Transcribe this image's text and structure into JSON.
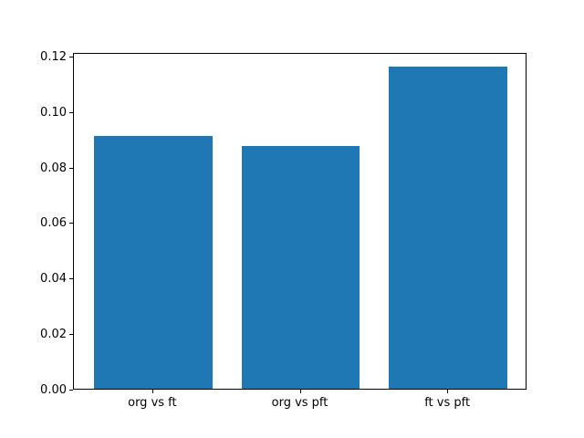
{
  "chart_data": {
    "type": "bar",
    "categories": [
      "org vs ft",
      "org vs pft",
      "ft vs pft"
    ],
    "values": [
      0.0911,
      0.0875,
      0.116
    ],
    "title": "",
    "xlabel": "",
    "ylabel": "",
    "ylim": [
      0,
      0.1213
    ],
    "xlim": [
      -0.5375,
      2.5375
    ],
    "ytick_labels": [
      "0.00",
      "0.02",
      "0.04",
      "0.06",
      "0.08",
      "0.10",
      "0.12"
    ],
    "ytick_values": [
      0.0,
      0.02,
      0.04,
      0.06,
      0.08,
      0.1,
      0.12
    ],
    "bar_width": 0.8,
    "bar_color": "#1f77b4",
    "spine_color": "#000000",
    "text_color": "#000000",
    "background_color": "#ffffff",
    "grid": false,
    "legend": null
  }
}
